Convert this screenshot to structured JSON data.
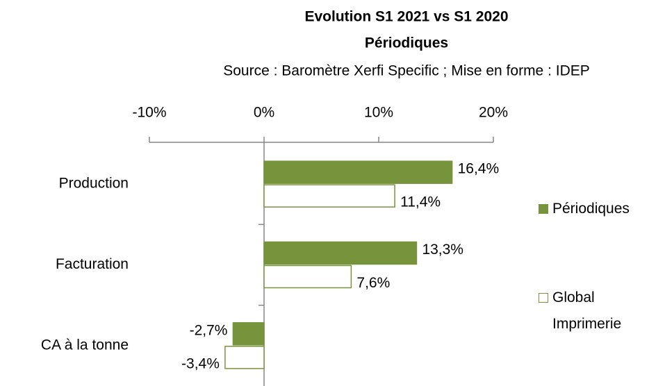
{
  "chart_data": {
    "type": "hbar",
    "title": "Evolution S1 2021 vs S1 2020",
    "subtitle": "Périodiques",
    "source": "Source : Baromètre Xerfi Specific ; Mise en forme : IDEP",
    "categories": [
      "Production",
      "Facturation",
      "CA à la tonne"
    ],
    "series": [
      {
        "name": "Périodiques",
        "color": "#77933c",
        "fill": "#77933c",
        "values": [
          16.4,
          13.3,
          -2.7
        ],
        "value_labels": [
          "16,4%",
          "13,3%",
          "-2,7%"
        ]
      },
      {
        "name": "Global Imprimerie",
        "color": "#77933c",
        "fill": "#ffffff",
        "values": [
          11.4,
          7.6,
          -3.4
        ],
        "value_labels": [
          "11,4%",
          "7,6%",
          "-3,4%"
        ]
      }
    ],
    "xlim": [
      -10,
      20
    ],
    "xticks": [
      {
        "value": -10,
        "label": "-10%"
      },
      {
        "value": 0,
        "label": "0%"
      },
      {
        "value": 10,
        "label": "10%"
      },
      {
        "value": 20,
        "label": "20%"
      }
    ],
    "legend": "right"
  }
}
